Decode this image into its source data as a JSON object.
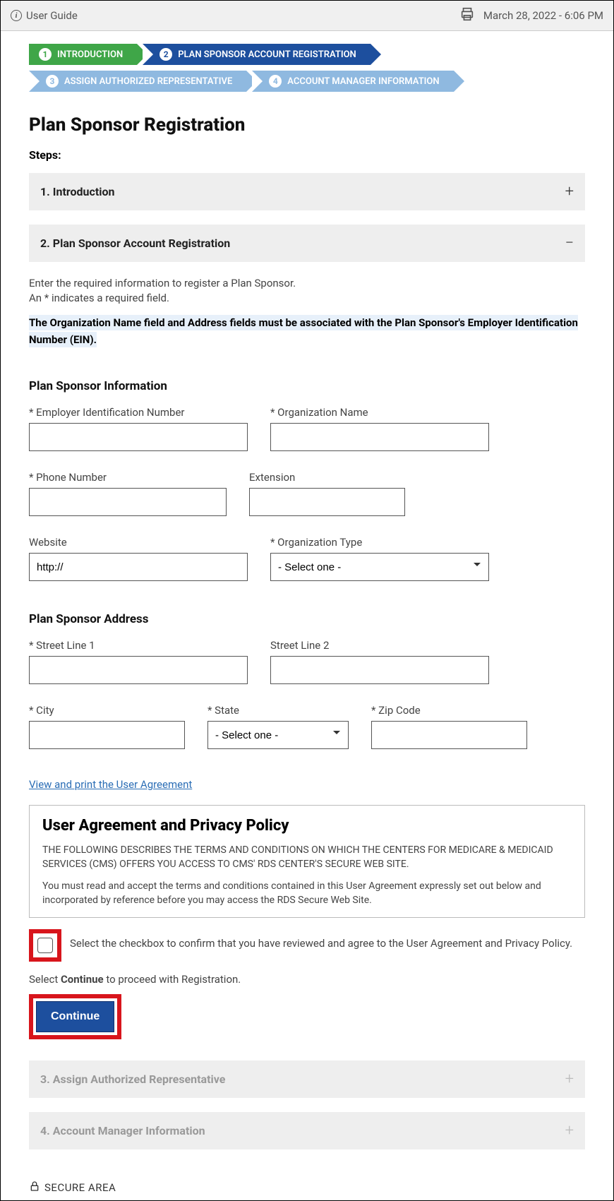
{
  "topbar": {
    "user_guide": "User Guide",
    "datetime": "March 28, 2022 - 6:06 PM"
  },
  "breadcrumbs": [
    {
      "num": "1",
      "label": "INTRODUCTION",
      "color": "c-green"
    },
    {
      "num": "2",
      "label": "PLAN SPONSOR ACCOUNT REGISTRATION",
      "color": "c-blue"
    },
    {
      "num": "3",
      "label": "ASSIGN AUTHORIZED REPRESENTATIVE",
      "color": "c-light"
    },
    {
      "num": "4",
      "label": "ACCOUNT MANAGER INFORMATION",
      "color": "c-light"
    }
  ],
  "page_title": "Plan Sponsor Registration",
  "steps_label": "Steps:",
  "accordions": {
    "intro": "1. Introduction",
    "registration": "2. Plan Sponsor Account Registration",
    "assign": "3. Assign Authorized Representative",
    "manager": "4. Account Manager Information"
  },
  "intro": {
    "line1": "Enter the required information to register a Plan Sponsor.",
    "line2": "An * indicates a required field.",
    "highlight": "The Organization Name field and Address fields must be associated with the Plan Sponsor's Employer Identification Number (EIN)."
  },
  "sections": {
    "info": "Plan Sponsor Information",
    "address": "Plan Sponsor Address"
  },
  "labels": {
    "ein": "* Employer Identification Number",
    "org_name": "* Organization Name",
    "phone": "* Phone Number",
    "ext": "Extension",
    "website": "Website",
    "org_type": "* Organization Type",
    "street1": "* Street Line 1",
    "street2": "Street Line 2",
    "city": "* City",
    "state": "* State",
    "zip": "* Zip Code"
  },
  "values": {
    "website": "http://",
    "org_type": "- Select one -",
    "state": "- Select one -"
  },
  "agreement": {
    "link": "View and print the User Agreement",
    "title": "User Agreement and Privacy Policy",
    "p1": "THE FOLLOWING DESCRIBES THE TERMS AND CONDITIONS ON WHICH THE CENTERS FOR MEDICARE & MEDICAID SERVICES (CMS) OFFERS YOU ACCESS TO CMS' RDS CENTER'S SECURE WEB SITE.",
    "p2": "You must read and accept the terms and conditions contained in this User Agreement expressly set out below and incorporated by reference before you may access the RDS Secure Web Site."
  },
  "checkbox_label": "Select the checkbox to confirm that you have reviewed and agree to the User Agreement and Privacy Policy.",
  "proceed_prefix": "Select ",
  "proceed_bold": "Continue",
  "proceed_suffix": " to proceed with Registration.",
  "continue_btn": "Continue",
  "secure_area": "SECURE AREA"
}
